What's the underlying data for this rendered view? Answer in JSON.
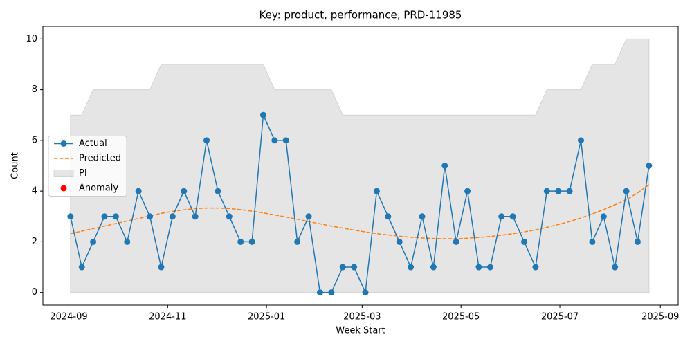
{
  "chart_data": {
    "type": "line",
    "title": "Key: product, performance, PRD-11985",
    "x_label": "Week Start",
    "y_label": "Count",
    "x": [
      "2024-09-02",
      "2024-09-09",
      "2024-09-16",
      "2024-09-23",
      "2024-09-30",
      "2024-10-07",
      "2024-10-14",
      "2024-10-21",
      "2024-10-28",
      "2024-11-04",
      "2024-11-11",
      "2024-11-18",
      "2024-11-25",
      "2024-12-02",
      "2024-12-09",
      "2024-12-16",
      "2024-12-23",
      "2024-12-30",
      "2025-01-06",
      "2025-01-13",
      "2025-01-20",
      "2025-01-27",
      "2025-02-03",
      "2025-02-10",
      "2025-02-17",
      "2025-02-24",
      "2025-03-03",
      "2025-03-10",
      "2025-03-17",
      "2025-03-24",
      "2025-03-31",
      "2025-04-07",
      "2025-04-14",
      "2025-04-21",
      "2025-04-28",
      "2025-05-05",
      "2025-05-12",
      "2025-05-19",
      "2025-05-26",
      "2025-06-02",
      "2025-06-09",
      "2025-06-16",
      "2025-06-23",
      "2025-06-30",
      "2025-07-07",
      "2025-07-14",
      "2025-07-21",
      "2025-07-28",
      "2025-08-04",
      "2025-08-11",
      "2025-08-18",
      "2025-08-25"
    ],
    "series": [
      {
        "name": "Actual",
        "color": "#1f77b4",
        "values": [
          3,
          1,
          2,
          3,
          3,
          2,
          4,
          3,
          1,
          3,
          4,
          3,
          6,
          4,
          3,
          2,
          2,
          7,
          6,
          6,
          2,
          3,
          0,
          0,
          1,
          1,
          0,
          4,
          3,
          2,
          1,
          3,
          1,
          5,
          2,
          4,
          1,
          1,
          3,
          3,
          2,
          1,
          4,
          4,
          4,
          6,
          2,
          3,
          1,
          4,
          2,
          5
        ]
      },
      {
        "name": "Predicted",
        "color": "#ff7f0e",
        "values": [
          2.32,
          2.42,
          2.52,
          2.62,
          2.72,
          2.82,
          2.92,
          3.02,
          3.12,
          3.2,
          3.26,
          3.31,
          3.33,
          3.33,
          3.31,
          3.27,
          3.21,
          3.14,
          3.06,
          2.98,
          2.89,
          2.8,
          2.71,
          2.62,
          2.54,
          2.46,
          2.39,
          2.32,
          2.27,
          2.22,
          2.18,
          2.15,
          2.13,
          2.12,
          2.12,
          2.14,
          2.17,
          2.21,
          2.26,
          2.32,
          2.39,
          2.47,
          2.57,
          2.68,
          2.8,
          2.94,
          3.1,
          3.27,
          3.46,
          3.66,
          3.93,
          4.25
        ]
      },
      {
        "name": "PI",
        "color": "#d3d3d3",
        "lower": [
          0,
          0,
          0,
          0,
          0,
          0,
          0,
          0,
          0,
          0,
          0,
          0,
          0,
          0,
          0,
          0,
          0,
          0,
          0,
          0,
          0,
          0,
          0,
          0,
          0,
          0,
          0,
          0,
          0,
          0,
          0,
          0,
          0,
          0,
          0,
          0,
          0,
          0,
          0,
          0,
          0,
          0,
          0,
          0,
          0,
          0,
          0,
          0,
          0,
          0,
          0,
          0
        ],
        "upper": [
          7,
          7,
          8,
          8,
          8,
          8,
          8,
          8,
          9,
          9,
          9,
          9,
          9,
          9,
          9,
          9,
          9,
          9,
          8,
          8,
          8,
          8,
          8,
          8,
          7,
          7,
          7,
          7,
          7,
          7,
          7,
          7,
          7,
          7,
          7,
          7,
          7,
          7,
          7,
          7,
          7,
          7,
          8,
          8,
          8,
          8,
          9,
          9,
          9,
          10,
          10,
          10
        ]
      },
      {
        "name": "Anomaly",
        "color": "#ff0000",
        "values": [
          null,
          null,
          null,
          null,
          null,
          null,
          null,
          null,
          null,
          null,
          null,
          null,
          null,
          null,
          null,
          null,
          null,
          null,
          null,
          null,
          null,
          null,
          null,
          null,
          null,
          null,
          null,
          null,
          null,
          null,
          null,
          null,
          null,
          null,
          null,
          null,
          null,
          null,
          null,
          null,
          null,
          null,
          null,
          null,
          null,
          null,
          null,
          null,
          null,
          null,
          null,
          null
        ]
      }
    ],
    "xlim": [
      "2024-08-16",
      "2025-09-12"
    ],
    "xticks": [
      "2024-09",
      "2024-11",
      "2025-01",
      "2025-03",
      "2025-05",
      "2025-07",
      "2025-09"
    ],
    "ylim": [
      -0.5,
      10.5
    ],
    "yticks": [
      0,
      2,
      4,
      6,
      8,
      10
    ],
    "legend": "center left"
  }
}
